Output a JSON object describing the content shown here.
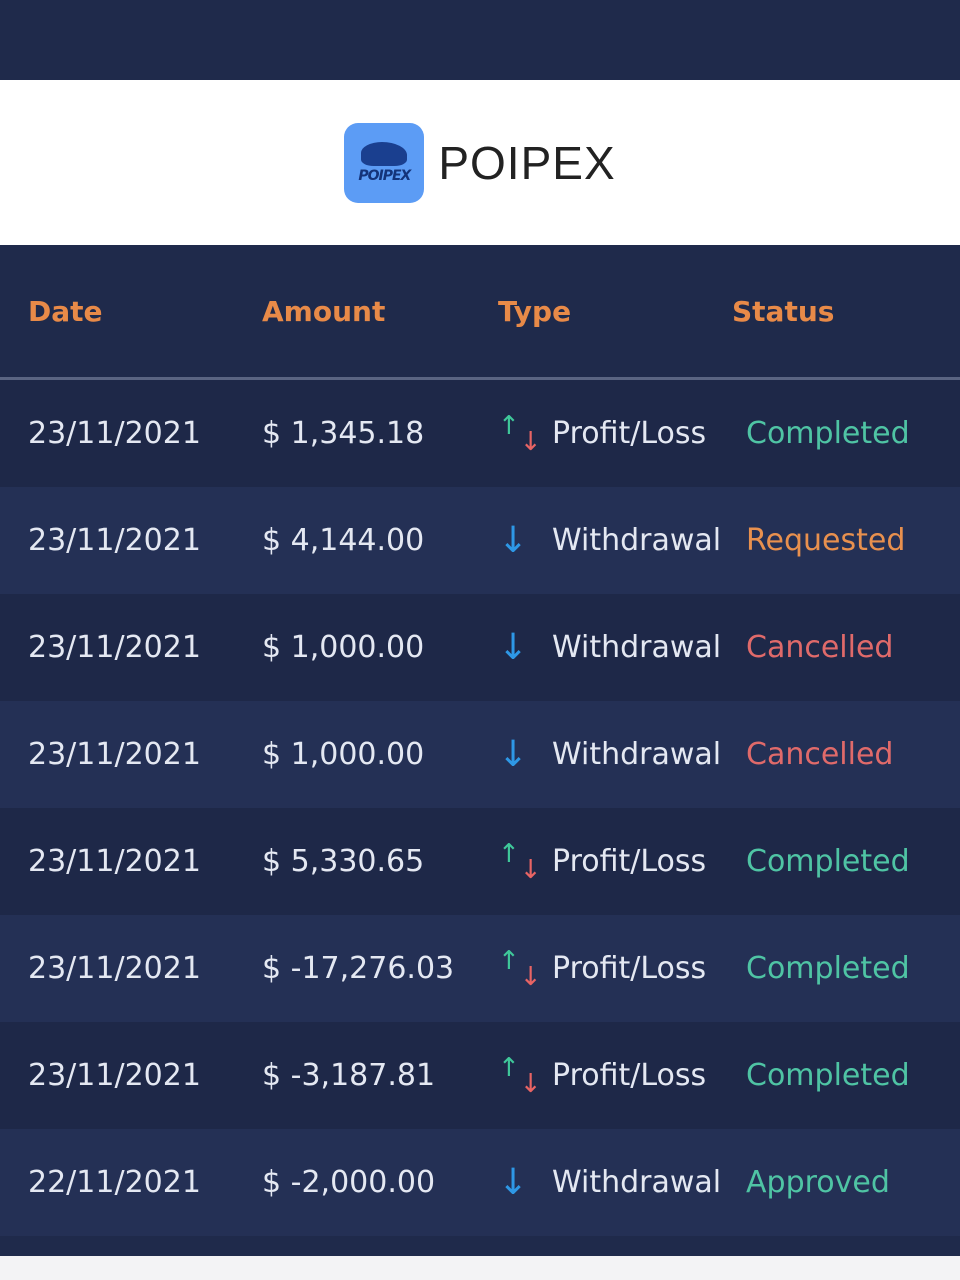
{
  "brand": {
    "name": "POIPEX",
    "logo_text": "POIPEX"
  },
  "colors": {
    "header": "#e88a48",
    "Completed": "#4fc4a4",
    "Requested": "#e8904e",
    "Cancelled": "#e06a6a",
    "Approved": "#4fc4a4"
  },
  "table": {
    "headers": {
      "date": "Date",
      "amount": "Amount",
      "type": "Type",
      "status": "Status"
    },
    "rows": [
      {
        "date": "23/11/2021",
        "amount": "$ 1,345.18",
        "type": "Profit/Loss",
        "icon": "up-down-arrows-icon",
        "status": "Completed"
      },
      {
        "date": "23/11/2021",
        "amount": "$ 4,144.00",
        "type": "Withdrawal",
        "icon": "arrow-down-icon",
        "status": "Requested"
      },
      {
        "date": "23/11/2021",
        "amount": "$ 1,000.00",
        "type": "Withdrawal",
        "icon": "arrow-down-icon",
        "status": "Cancelled"
      },
      {
        "date": "23/11/2021",
        "amount": "$ 1,000.00",
        "type": "Withdrawal",
        "icon": "arrow-down-icon",
        "status": "Cancelled"
      },
      {
        "date": "23/11/2021",
        "amount": "$ 5,330.65",
        "type": "Profit/Loss",
        "icon": "up-down-arrows-icon",
        "status": "Completed"
      },
      {
        "date": "23/11/2021",
        "amount": "$ -17,276.03",
        "type": "Profit/Loss",
        "icon": "up-down-arrows-icon",
        "status": "Completed"
      },
      {
        "date": "23/11/2021",
        "amount": "$ -3,187.81",
        "type": "Profit/Loss",
        "icon": "up-down-arrows-icon",
        "status": "Completed"
      },
      {
        "date": "22/11/2021",
        "amount": "$ -2,000.00",
        "type": "Withdrawal",
        "icon": "arrow-down-icon",
        "status": "Approved"
      }
    ]
  }
}
